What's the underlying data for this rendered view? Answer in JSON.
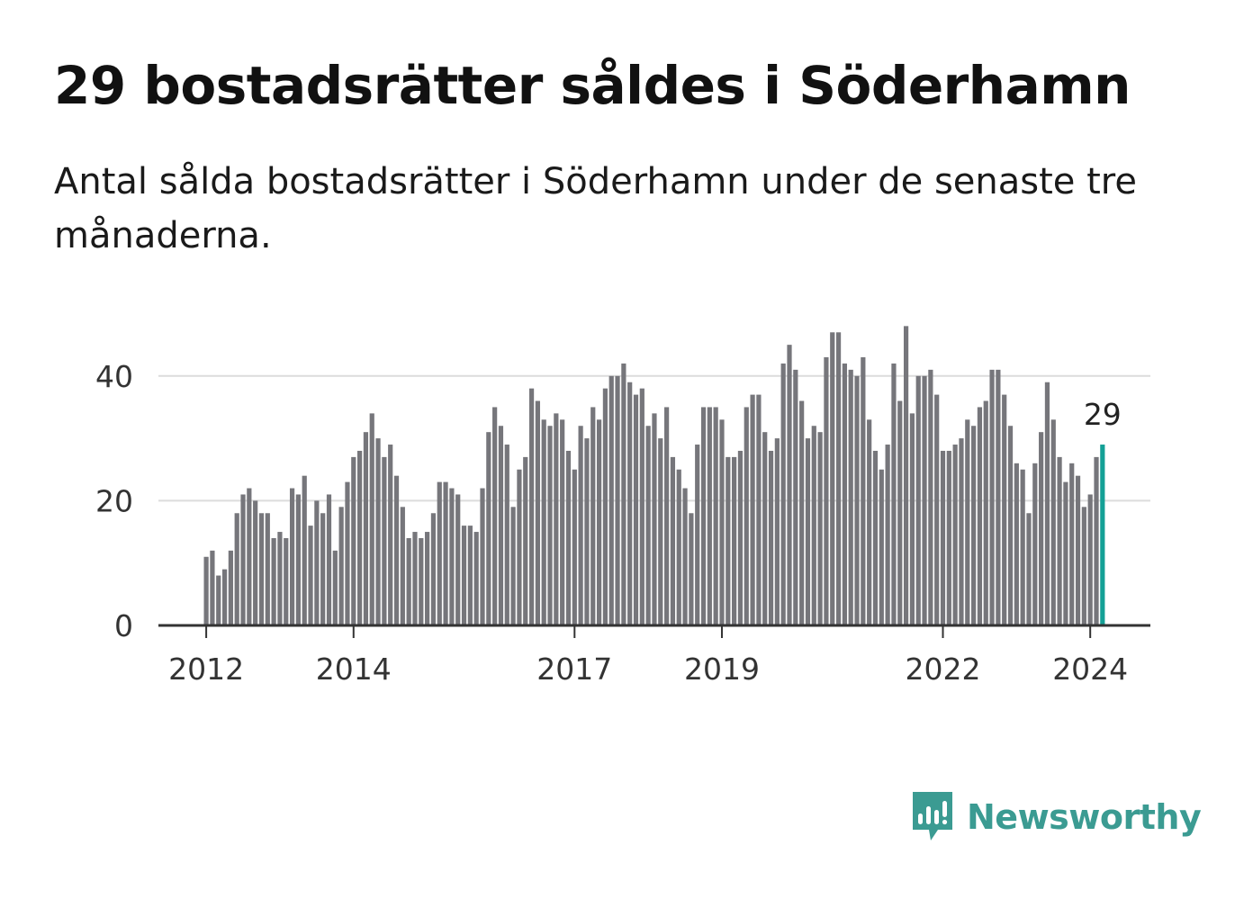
{
  "header": {
    "title": "29 bostadsrätter såldes i Söderhamn",
    "subtitle": "Antal sålda bostadsrätter i Söderhamn under de senaste tre månaderna."
  },
  "brand": {
    "name": "Newsworthy",
    "color": "#3b9b92",
    "icon": "newsworthy-chart-bubble-icon"
  },
  "chart_data": {
    "type": "bar",
    "x_start": "2012-01",
    "frequency": "monthly",
    "values": [
      11,
      12,
      8,
      9,
      12,
      18,
      21,
      22,
      20,
      18,
      18,
      14,
      15,
      14,
      22,
      21,
      24,
      16,
      20,
      18,
      21,
      12,
      19,
      23,
      27,
      28,
      31,
      34,
      30,
      27,
      29,
      24,
      19,
      14,
      15,
      14,
      15,
      18,
      23,
      23,
      22,
      21,
      16,
      16,
      15,
      22,
      31,
      35,
      32,
      29,
      19,
      25,
      27,
      38,
      36,
      33,
      32,
      34,
      33,
      28,
      25,
      32,
      30,
      35,
      33,
      38,
      40,
      40,
      42,
      39,
      37,
      38,
      32,
      34,
      30,
      35,
      27,
      25,
      22,
      18,
      29,
      35,
      35,
      35,
      33,
      27,
      27,
      28,
      35,
      37,
      37,
      31,
      28,
      30,
      42,
      45,
      41,
      36,
      30,
      32,
      31,
      43,
      47,
      47,
      42,
      41,
      40,
      43,
      33,
      28,
      25,
      29,
      42,
      36,
      48,
      34,
      40,
      40,
      41,
      37,
      28,
      28,
      29,
      30,
      33,
      32,
      35,
      36,
      41,
      41,
      37,
      32,
      26,
      25,
      18,
      26,
      31,
      39,
      33,
      27,
      23,
      26,
      24,
      19,
      21,
      27,
      29
    ],
    "highlight_last": true,
    "highlight_label": "29",
    "bar_color": "#76767b",
    "highlight_color": "#14a096",
    "x_ticks": [
      "2012",
      "2014",
      "2017",
      "2019",
      "2022",
      "2024"
    ],
    "y_ticks": [
      "0",
      "20",
      "40"
    ],
    "ylim": [
      0,
      50
    ],
    "grid": true,
    "xlabel": "",
    "ylabel": ""
  }
}
